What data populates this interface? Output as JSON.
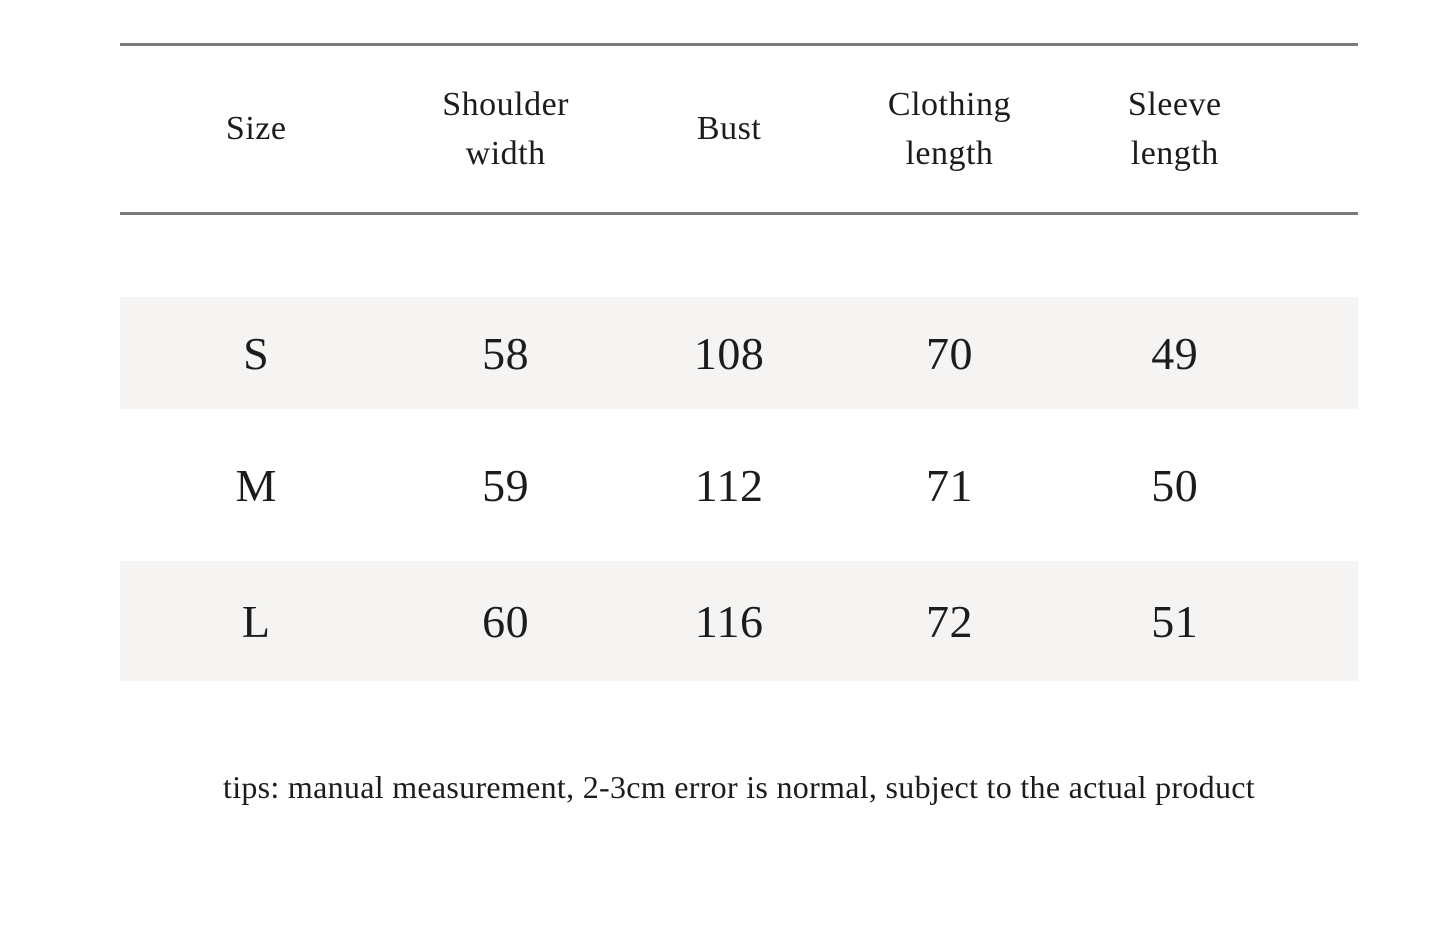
{
  "chart_data": {
    "type": "table",
    "columns": [
      "Size",
      "Shoulder width",
      "Bust",
      "Clothing length",
      "Sleeve length"
    ],
    "rows": [
      [
        "S",
        "58",
        "108",
        "70",
        "49"
      ],
      [
        "M",
        "59",
        "112",
        "71",
        "50"
      ],
      [
        "L",
        "60",
        "116",
        "72",
        "51"
      ]
    ],
    "note": "tips: manual measurement, 2-3cm error is normal, subject to the actual product",
    "layout": {
      "grid": "horizontal rules above and below header only",
      "banded_rows": [
        "S",
        "L"
      ]
    }
  },
  "colors": {
    "background": "#ffffff",
    "rule": "#7a7a7a",
    "row_band": "#f5f4f2",
    "text": "#1c1c1c"
  }
}
